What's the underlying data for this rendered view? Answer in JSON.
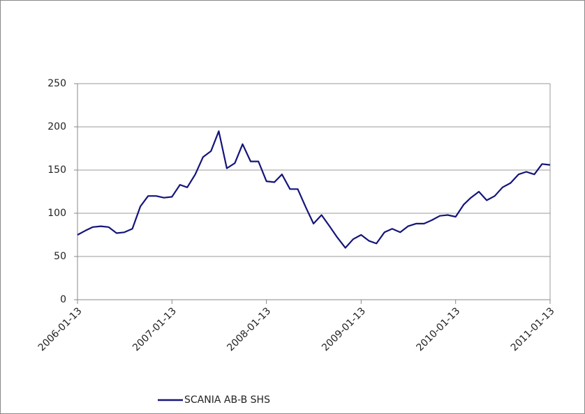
{
  "chart_data": {
    "type": "line",
    "x": [
      "2006-01-13",
      "2006-02-13",
      "2006-03-13",
      "2006-04-13",
      "2006-05-13",
      "2006-06-13",
      "2006-07-13",
      "2006-08-13",
      "2006-09-13",
      "2006-10-13",
      "2006-11-13",
      "2006-12-13",
      "2007-01-13",
      "2007-02-13",
      "2007-03-13",
      "2007-04-13",
      "2007-05-13",
      "2007-06-13",
      "2007-07-13",
      "2007-08-13",
      "2007-09-13",
      "2007-10-13",
      "2007-11-13",
      "2007-12-13",
      "2008-01-13",
      "2008-02-13",
      "2008-03-13",
      "2008-04-13",
      "2008-05-13",
      "2008-06-13",
      "2008-07-13",
      "2008-08-13",
      "2008-09-13",
      "2008-10-13",
      "2008-11-13",
      "2008-12-13",
      "2009-01-13",
      "2009-02-13",
      "2009-03-13",
      "2009-04-13",
      "2009-05-13",
      "2009-06-13",
      "2009-07-13",
      "2009-08-13",
      "2009-09-13",
      "2009-10-13",
      "2009-11-13",
      "2009-12-13",
      "2010-01-13",
      "2010-02-13",
      "2010-03-13",
      "2010-04-13",
      "2010-05-13",
      "2010-06-13",
      "2010-07-13",
      "2010-08-13",
      "2010-09-13",
      "2010-10-13",
      "2010-11-13",
      "2010-12-13",
      "2011-01-13"
    ],
    "series": [
      {
        "name": "SCANIA AB-B SHS",
        "color": "#14147a",
        "values": [
          75,
          80,
          84,
          85,
          84,
          77,
          78,
          82,
          108,
          120,
          120,
          118,
          119,
          133,
          130,
          145,
          165,
          172,
          195,
          152,
          158,
          180,
          160,
          160,
          137,
          136,
          145,
          128,
          128,
          107,
          88,
          98,
          85,
          72,
          60,
          70,
          75,
          68,
          65,
          78,
          82,
          78,
          85,
          88,
          88,
          92,
          97,
          98,
          96,
          110,
          118,
          125,
          115,
          120,
          130,
          135,
          145,
          148,
          145,
          157,
          156
        ]
      }
    ],
    "xlim": [
      "2006-01-13",
      "2011-01-13"
    ],
    "xticks": [
      "2006-01-13",
      "2007-01-13",
      "2008-01-13",
      "2009-01-13",
      "2010-01-13",
      "2011-01-13"
    ],
    "ylim": [
      0,
      250
    ],
    "yticks": [
      0,
      50,
      100,
      150,
      200,
      250
    ],
    "grid": true,
    "legend": "bottom"
  }
}
